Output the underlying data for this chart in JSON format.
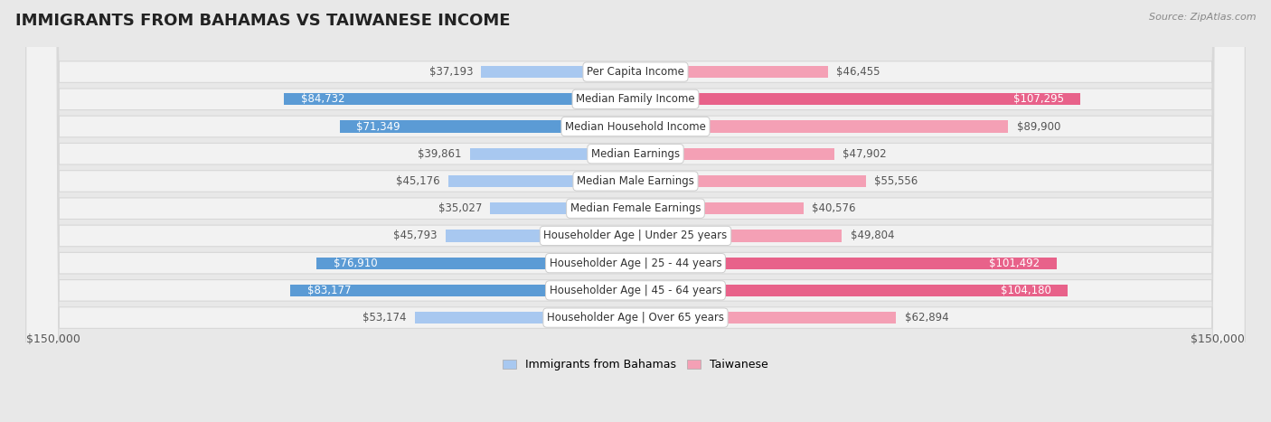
{
  "title": "IMMIGRANTS FROM BAHAMAS VS TAIWANESE INCOME",
  "source": "Source: ZipAtlas.com",
  "categories": [
    "Per Capita Income",
    "Median Family Income",
    "Median Household Income",
    "Median Earnings",
    "Median Male Earnings",
    "Median Female Earnings",
    "Householder Age | Under 25 years",
    "Householder Age | 25 - 44 years",
    "Householder Age | 45 - 64 years",
    "Householder Age | Over 65 years"
  ],
  "bahamas_values": [
    37193,
    84732,
    71349,
    39861,
    45176,
    35027,
    45793,
    76910,
    83177,
    53174
  ],
  "taiwanese_values": [
    46455,
    107295,
    89900,
    47902,
    55556,
    40576,
    49804,
    101492,
    104180,
    62894
  ],
  "bahamas_color_light": "#a8c8f0",
  "bahamas_color_dark": "#5b9bd5",
  "taiwanese_color_light": "#f4a0b5",
  "taiwanese_color_dark": "#e8628a",
  "bahamas_dark_threshold": 60000,
  "taiwanese_dark_threshold": 90000,
  "xlim": 150000,
  "xlabel_left": "$150,000",
  "xlabel_right": "$150,000",
  "background_color": "#ffffff",
  "row_bg_light": "#f2f2f2",
  "row_border_color": "#d8d8d8",
  "title_fontsize": 13,
  "label_fontsize": 8.5,
  "value_fontsize": 8.5,
  "legend_fontsize": 9,
  "outer_bg": "#e8e8e8"
}
